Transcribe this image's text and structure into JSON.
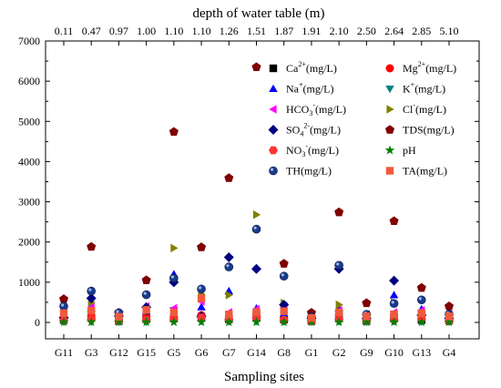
{
  "chart_data": {
    "type": "scatter",
    "categories": [
      "G11",
      "G3",
      "G12",
      "G15",
      "G5",
      "G6",
      "G7",
      "G14",
      "G8",
      "G1",
      "G2",
      "G9",
      "G10",
      "G13",
      "G4"
    ],
    "top_axis": {
      "title": "depth of water table (m)",
      "ticks": [
        "0.11",
        "0.47",
        "0.97",
        "1.00",
        "1.10",
        "1.10",
        "1.26",
        "1.51",
        "1.87",
        "1.91",
        "2.10",
        "2.50",
        "2.64",
        "2.85",
        "5.10"
      ]
    },
    "xlabel": "Sampling sites",
    "ylabel": "",
    "ylim": [
      0,
      7000
    ],
    "yticks": [
      "0",
      "1000",
      "2000",
      "3000",
      "4000",
      "5000",
      "6000",
      "7000"
    ],
    "grid": false,
    "legend_position": "top-right",
    "series": [
      {
        "name": "Ca2+(mg/L)",
        "label_main": "Ca",
        "label_sup": "2+",
        "label_tail": "(mg/L)",
        "marker": "square",
        "color": "#000000",
        "values": [
          60,
          120,
          40,
          80,
          100,
          120,
          80,
          120,
          70,
          40,
          100,
          40,
          100,
          60,
          50
        ]
      },
      {
        "name": "Mg2+(mg/L)",
        "label_main": "Mg",
        "label_sup": "2+",
        "label_tail": "(mg/L)",
        "marker": "circle",
        "color": "#ff0000",
        "values": [
          90,
          140,
          70,
          160,
          140,
          180,
          150,
          210,
          110,
          50,
          200,
          70,
          180,
          150,
          60
        ]
      },
      {
        "name": "Na+(mg/L)",
        "label_main": "Na",
        "label_sup": "+",
        "label_tail": "(mg/L)",
        "marker": "triangle-up",
        "color": "#0000ff",
        "values": [
          200,
          350,
          120,
          280,
          1200,
          380,
          780,
          350,
          220,
          70,
          350,
          120,
          680,
          330,
          100
        ]
      },
      {
        "name": "K+(mg/L)",
        "label_main": "K",
        "label_sup": "+",
        "label_tail": "(mg/L)",
        "marker": "triangle-down",
        "color": "#008080",
        "values": [
          15,
          20,
          10,
          15,
          300,
          30,
          25,
          30,
          20,
          10,
          25,
          10,
          30,
          20,
          10
        ]
      },
      {
        "name": "HCO3-(mg/L)",
        "label_main": "HCO",
        "label_sub": "3",
        "label_sup": "-",
        "label_tail": "(mg/L)",
        "marker": "triangle-left",
        "color": "#ff00ff",
        "values": [
          300,
          380,
          180,
          400,
          350,
          520,
          250,
          330,
          380,
          150,
          300,
          200,
          250,
          300,
          200
        ]
      },
      {
        "name": "Cl-(mg/L)",
        "label_main": "Cl",
        "label_sup": "-",
        "label_tail": "(mg/L)",
        "marker": "triangle-right",
        "color": "#808000",
        "values": [
          120,
          500,
          100,
          280,
          1850,
          700,
          680,
          2680,
          480,
          80,
          440,
          140,
          500,
          200,
          120
        ]
      },
      {
        "name": "SO42-(mg/L)",
        "label_main": "SO",
        "label_sub": "4",
        "label_sup": "2-",
        "label_tail": "(mg/L)",
        "marker": "diamond",
        "color": "#000080",
        "values": [
          120,
          600,
          160,
          380,
          1000,
          150,
          1620,
          1330,
          440,
          100,
          1330,
          100,
          1040,
          180,
          100
        ]
      },
      {
        "name": "TDS(mg/L)",
        "label_main": "TDS(mg/L)",
        "marker": "pentagon",
        "color": "#800000",
        "values": [
          580,
          1880,
          240,
          1050,
          4740,
          1870,
          3590,
          6350,
          1460,
          240,
          2740,
          480,
          2520,
          860,
          400
        ]
      },
      {
        "name": "NO3-(mg/L)",
        "label_main": "NO",
        "label_sub": "3",
        "label_sup": "-",
        "label_tail": "(mg/L)",
        "marker": "hexagon",
        "color": "#ff3333",
        "values": [
          50,
          80,
          30,
          60,
          80,
          120,
          70,
          120,
          60,
          30,
          80,
          40,
          60,
          80,
          30
        ]
      },
      {
        "name": "pH",
        "label_main": "pH",
        "marker": "star",
        "color": "#008000",
        "values": [
          8,
          8,
          8,
          8,
          8,
          8,
          8,
          8,
          8,
          8,
          8,
          8,
          8,
          8,
          8
        ]
      },
      {
        "name": "TH(mg/L)",
        "label_main": "TH(mg/L)",
        "marker": "sphere",
        "color": "#1a3a8a",
        "values": [
          400,
          780,
          240,
          690,
          1100,
          830,
          1380,
          2320,
          1150,
          140,
          1420,
          200,
          470,
          560,
          200
        ]
      },
      {
        "name": "TA(mg/L)",
        "label_main": "TA(mg/L)",
        "marker": "square",
        "color": "#f05a3c",
        "values": [
          230,
          290,
          140,
          310,
          250,
          600,
          200,
          260,
          280,
          110,
          250,
          150,
          200,
          230,
          150
        ]
      }
    ]
  }
}
